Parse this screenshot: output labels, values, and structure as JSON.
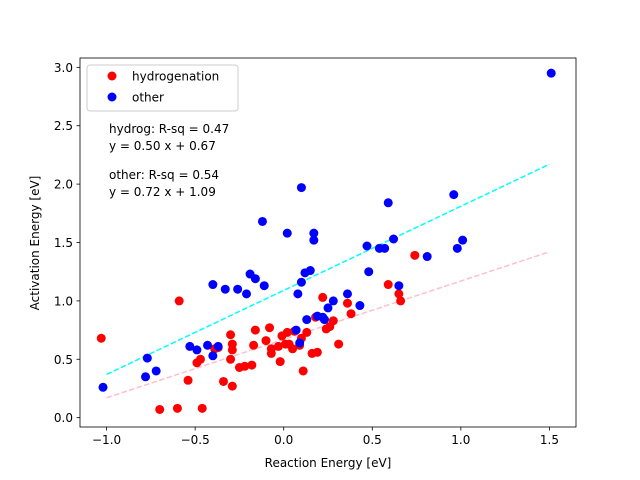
{
  "chart_data": {
    "type": "scatter",
    "xlabel": "Reaction Energy [eV]",
    "ylabel": "Activation Energy [eV]",
    "xlim": [
      -1.15,
      1.65
    ],
    "ylim": [
      -0.08,
      3.08
    ],
    "x_ticks": [
      -1.0,
      -0.5,
      0.0,
      0.5,
      1.0,
      1.5
    ],
    "x_tick_labels": [
      "−1.0",
      "−0.5",
      "0.0",
      "0.5",
      "1.0",
      "1.5"
    ],
    "y_ticks": [
      0.0,
      0.5,
      1.0,
      1.5,
      2.0,
      2.5,
      3.0
    ],
    "y_tick_labels": [
      "0.0",
      "0.5",
      "1.0",
      "1.5",
      "2.0",
      "2.5",
      "3.0"
    ],
    "legend_position": "top-left",
    "colors": {
      "hydrogenation": "#ff0000",
      "other": "#0000ff",
      "hydrogenation_fit": "#ffc0cb",
      "other_fit": "#00ffff"
    },
    "annotations": {
      "hydrog_line1": "hydrog: R-sq = 0.47",
      "hydrog_line2": "y = 0.50 x + 0.67",
      "other_line1": "other: R-sq = 0.54",
      "other_line2": "y = 0.72 x + 1.09"
    },
    "series": [
      {
        "name": "hydrogenation",
        "color": "#ff0000",
        "fit": {
          "slope": 0.5,
          "intercept": 0.67,
          "x_range": [
            -1.0,
            1.5
          ]
        },
        "points": [
          [
            -1.03,
            0.68
          ],
          [
            -0.59,
            1.0
          ],
          [
            -0.7,
            0.07
          ],
          [
            -0.6,
            0.08
          ],
          [
            -0.46,
            0.08
          ],
          [
            -0.54,
            0.32
          ],
          [
            -0.49,
            0.47
          ],
          [
            -0.47,
            0.5
          ],
          [
            -0.39,
            0.59
          ],
          [
            -0.37,
            0.6
          ],
          [
            -0.34,
            0.31
          ],
          [
            -0.29,
            0.27
          ],
          [
            -0.3,
            0.71
          ],
          [
            -0.29,
            0.63
          ],
          [
            -0.29,
            0.58
          ],
          [
            -0.3,
            0.5
          ],
          [
            -0.25,
            0.43
          ],
          [
            -0.22,
            0.44
          ],
          [
            -0.18,
            0.45
          ],
          [
            -0.17,
            0.62
          ],
          [
            -0.16,
            0.75
          ],
          [
            -0.1,
            0.66
          ],
          [
            -0.08,
            0.77
          ],
          [
            -0.07,
            0.59
          ],
          [
            -0.07,
            0.55
          ],
          [
            -0.03,
            0.61
          ],
          [
            -0.02,
            0.48
          ],
          [
            -0.01,
            0.7
          ],
          [
            0.01,
            0.63
          ],
          [
            0.02,
            0.73
          ],
          [
            0.03,
            0.63
          ],
          [
            0.05,
            0.59
          ],
          [
            0.06,
            0.74
          ],
          [
            0.09,
            0.62
          ],
          [
            0.1,
            0.68
          ],
          [
            0.11,
            0.4
          ],
          [
            0.13,
            0.73
          ],
          [
            0.16,
            0.55
          ],
          [
            0.18,
            0.86
          ],
          [
            0.19,
            0.56
          ],
          [
            0.22,
            1.03
          ],
          [
            0.24,
            0.76
          ],
          [
            0.26,
            0.78
          ],
          [
            0.28,
            0.83
          ],
          [
            0.31,
            0.63
          ],
          [
            0.36,
            0.98
          ],
          [
            0.38,
            0.89
          ],
          [
            0.59,
            1.14
          ],
          [
            0.65,
            1.06
          ],
          [
            0.66,
            1.0
          ],
          [
            0.74,
            1.39
          ]
        ]
      },
      {
        "name": "other",
        "color": "#0000ff",
        "fit": {
          "slope": 0.72,
          "intercept": 1.09,
          "x_range": [
            -1.0,
            1.5
          ]
        },
        "points": [
          [
            -1.02,
            0.26
          ],
          [
            -0.77,
            0.51
          ],
          [
            -0.78,
            0.35
          ],
          [
            -0.72,
            0.4
          ],
          [
            -0.53,
            0.61
          ],
          [
            -0.49,
            0.58
          ],
          [
            -0.43,
            0.62
          ],
          [
            -0.4,
            0.53
          ],
          [
            -0.37,
            0.61
          ],
          [
            -0.4,
            1.14
          ],
          [
            -0.33,
            1.1
          ],
          [
            -0.26,
            1.1
          ],
          [
            -0.21,
            1.06
          ],
          [
            -0.19,
            1.23
          ],
          [
            -0.16,
            1.19
          ],
          [
            -0.12,
            1.68
          ],
          [
            -0.11,
            1.13
          ],
          [
            0.02,
            1.58
          ],
          [
            0.07,
            0.75
          ],
          [
            0.08,
            1.06
          ],
          [
            0.09,
            0.64
          ],
          [
            0.1,
            1.16
          ],
          [
            0.12,
            1.24
          ],
          [
            0.1,
            1.97
          ],
          [
            0.13,
            0.84
          ],
          [
            0.15,
            1.26
          ],
          [
            0.17,
            1.58
          ],
          [
            0.17,
            1.52
          ],
          [
            0.19,
            0.87
          ],
          [
            0.22,
            0.86
          ],
          [
            0.23,
            0.84
          ],
          [
            0.25,
            0.94
          ],
          [
            0.28,
            1.0
          ],
          [
            0.36,
            1.06
          ],
          [
            0.43,
            0.96
          ],
          [
            0.47,
            1.47
          ],
          [
            0.48,
            1.25
          ],
          [
            0.54,
            1.45
          ],
          [
            0.57,
            1.45
          ],
          [
            0.59,
            1.84
          ],
          [
            0.62,
            1.53
          ],
          [
            0.65,
            1.13
          ],
          [
            0.81,
            1.38
          ],
          [
            0.96,
            1.91
          ],
          [
            0.98,
            1.45
          ],
          [
            1.01,
            1.52
          ],
          [
            1.51,
            2.95
          ]
        ]
      }
    ]
  }
}
